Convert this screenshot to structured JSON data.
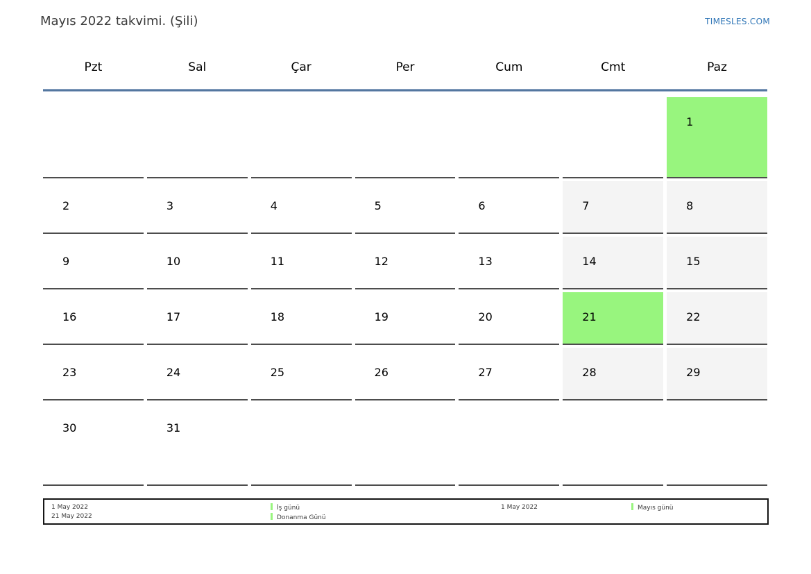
{
  "page": {
    "title": "Mayıs 2022 takvimi. (Şili)",
    "site_link": "TIMESLES.COM"
  },
  "colors": {
    "holiday_green": "#98f57e",
    "weekend_gray": "#f4f4f4",
    "link_blue": "#2e75b6",
    "header_rule_blue": "#54779f",
    "cell_border_gray": "#4d4d4d"
  },
  "calendar": {
    "weekday_headers": [
      "Pzt",
      "Sal",
      "Çar",
      "Per",
      "Cum",
      "Cmt",
      "Paz"
    ],
    "weeks": [
      [
        {
          "day": "",
          "type": "empty"
        },
        {
          "day": "",
          "type": "empty"
        },
        {
          "day": "",
          "type": "empty"
        },
        {
          "day": "",
          "type": "empty"
        },
        {
          "day": "",
          "type": "empty"
        },
        {
          "day": "",
          "type": "empty"
        },
        {
          "day": "1",
          "type": "holiday"
        }
      ],
      [
        {
          "day": "2",
          "type": "normal"
        },
        {
          "day": "3",
          "type": "normal"
        },
        {
          "day": "4",
          "type": "normal"
        },
        {
          "day": "5",
          "type": "normal"
        },
        {
          "day": "6",
          "type": "normal"
        },
        {
          "day": "7",
          "type": "weekend"
        },
        {
          "day": "8",
          "type": "weekend"
        }
      ],
      [
        {
          "day": "9",
          "type": "normal"
        },
        {
          "day": "10",
          "type": "normal"
        },
        {
          "day": "11",
          "type": "normal"
        },
        {
          "day": "12",
          "type": "normal"
        },
        {
          "day": "13",
          "type": "normal"
        },
        {
          "day": "14",
          "type": "weekend"
        },
        {
          "day": "15",
          "type": "weekend"
        }
      ],
      [
        {
          "day": "16",
          "type": "normal"
        },
        {
          "day": "17",
          "type": "normal"
        },
        {
          "day": "18",
          "type": "normal"
        },
        {
          "day": "19",
          "type": "normal"
        },
        {
          "day": "20",
          "type": "normal"
        },
        {
          "day": "21",
          "type": "holiday"
        },
        {
          "day": "22",
          "type": "weekend"
        }
      ],
      [
        {
          "day": "23",
          "type": "normal"
        },
        {
          "day": "24",
          "type": "normal"
        },
        {
          "day": "25",
          "type": "normal"
        },
        {
          "day": "26",
          "type": "normal"
        },
        {
          "day": "27",
          "type": "normal"
        },
        {
          "day": "28",
          "type": "weekend"
        },
        {
          "day": "29",
          "type": "weekend"
        }
      ],
      [
        {
          "day": "30",
          "type": "normal"
        },
        {
          "day": "31",
          "type": "normal"
        },
        {
          "day": "",
          "type": "empty"
        },
        {
          "day": "",
          "type": "empty"
        },
        {
          "day": "",
          "type": "empty"
        },
        {
          "day": "",
          "type": "empty"
        },
        {
          "day": "",
          "type": "empty"
        }
      ]
    ]
  },
  "legend": {
    "left_dates": [
      "1 May 2022",
      "21 May 2022"
    ],
    "left_labels": [
      "İş günü",
      "Donanma Günü"
    ],
    "right_dates": [
      "1 May 2022"
    ],
    "right_labels": [
      "Mayıs günü"
    ]
  }
}
